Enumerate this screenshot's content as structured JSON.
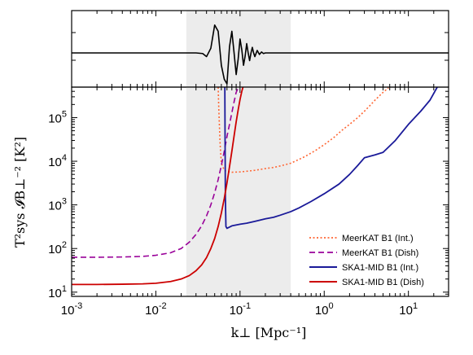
{
  "chart_data": [
    {
      "type": "line",
      "panel": "top",
      "description_axes": "none",
      "shaded_band": [
        0.023,
        0.4
      ],
      "series": [
        {
          "color": "#000000",
          "style": "solid",
          "x": [
            0.001,
            0.03,
            0.036,
            0.04,
            0.045,
            0.05,
            0.055,
            0.06,
            0.065,
            0.07,
            0.075,
            0.08,
            0.085,
            0.09,
            0.095,
            0.1,
            0.105,
            0.11,
            0.115,
            0.12,
            0.125,
            0.13,
            0.135,
            0.14,
            0.145,
            0.15,
            0.16,
            0.17,
            0.18,
            0.19,
            0.2,
            0.3,
            30
          ],
          "y": [
            0,
            0,
            -0.02,
            -0.12,
            0.15,
            0.9,
            0.7,
            -0.4,
            -0.85,
            -1.0,
            0.2,
            0.7,
            0.0,
            -0.7,
            -0.2,
            0.45,
            0.1,
            -0.4,
            -0.1,
            0.3,
            0.0,
            -0.25,
            0.0,
            0.18,
            0.0,
            -0.12,
            0.08,
            -0.05,
            0.03,
            -0.02,
            0.0,
            0.0,
            0.0
          ]
        }
      ]
    },
    {
      "type": "line",
      "panel": "bottom",
      "xscale": "log",
      "yscale": "log",
      "xlim": [
        0.001,
        30
      ],
      "ylim": [
        8,
        500000
      ],
      "xlabel": "k⊥ [Mpc⁻¹]",
      "ylabel": "T²sys 𝓘B⊥⁻² [K²]",
      "x_ticks": [
        {
          "base": "10",
          "exp": "-3"
        },
        {
          "base": "10",
          "exp": "-2"
        },
        {
          "base": "10",
          "exp": "-1"
        },
        {
          "base": "10",
          "exp": "0"
        },
        {
          "base": "10",
          "exp": "1"
        }
      ],
      "y_ticks": [
        {
          "base": "10",
          "exp": "1"
        },
        {
          "base": "10",
          "exp": "2"
        },
        {
          "base": "10",
          "exp": "3"
        },
        {
          "base": "10",
          "exp": "4"
        },
        {
          "base": "10",
          "exp": "5"
        }
      ],
      "shaded_band": [
        0.023,
        0.4
      ],
      "legend_position": "lower-right",
      "series": [
        {
          "name": "MeerKAT B1 (Int.)",
          "color": "#ff6633",
          "style": "dotted",
          "x": [
            0.055,
            0.056,
            0.058,
            0.06,
            0.065,
            0.07,
            0.08,
            0.1,
            0.12,
            0.15,
            0.2,
            0.25,
            0.3,
            0.4,
            0.5,
            0.6,
            0.8,
            1.0,
            1.3,
            1.6,
            2.0,
            2.5,
            3.0,
            3.5,
            4.0,
            5.0,
            5.8
          ],
          "y": [
            500000,
            150000,
            25000,
            9000,
            6200,
            5800,
            5600,
            5700,
            5900,
            6200,
            6800,
            7200,
            7800,
            9000,
            11000,
            13000,
            18000,
            24000,
            35000,
            50000,
            70000,
            100000,
            140000,
            190000,
            250000,
            380000,
            480000
          ]
        },
        {
          "name": "MeerKAT B1 (Dish)",
          "color": "#990099",
          "style": "dashed",
          "x": [
            0.001,
            0.002,
            0.004,
            0.007,
            0.01,
            0.015,
            0.02,
            0.025,
            0.03,
            0.035,
            0.04,
            0.045,
            0.05,
            0.055,
            0.06,
            0.065,
            0.07,
            0.075,
            0.08,
            0.085,
            0.09,
            0.1
          ],
          "y": [
            63,
            63,
            64,
            66,
            70,
            80,
            100,
            140,
            210,
            330,
            560,
            1000,
            1900,
            3800,
            8000,
            17000,
            37000,
            70000,
            130000,
            230000,
            380000,
            600000
          ]
        },
        {
          "name": "SKA1-MID B1 (Int.)",
          "color": "#1a1a99",
          "style": "solid",
          "x": [
            0.066,
            0.0665,
            0.067,
            0.068,
            0.07,
            0.08,
            0.1,
            0.12,
            0.15,
            0.2,
            0.25,
            0.3,
            0.4,
            0.5,
            0.7,
            1.0,
            1.5,
            2.0,
            2.5,
            3.0,
            4.0,
            5.0,
            7.0,
            10,
            14,
            18,
            22
          ],
          "y": [
            500000,
            20000,
            1500,
            320,
            290,
            330,
            360,
            380,
            420,
            480,
            520,
            580,
            700,
            850,
            1200,
            1800,
            3000,
            5000,
            8000,
            12000,
            14000,
            16000,
            30000,
            70000,
            140000,
            250000,
            500000
          ]
        },
        {
          "name": "SKA1-MID B1 (Dish)",
          "color": "#cc0000",
          "style": "solid",
          "x": [
            0.001,
            0.002,
            0.004,
            0.007,
            0.01,
            0.015,
            0.02,
            0.025,
            0.03,
            0.035,
            0.04,
            0.045,
            0.05,
            0.055,
            0.06,
            0.065,
            0.07,
            0.075,
            0.08,
            0.085,
            0.09,
            0.095,
            0.1,
            0.105,
            0.11
          ],
          "y": [
            15,
            15,
            15.2,
            15.5,
            16,
            17.5,
            20,
            24,
            31,
            42,
            62,
            100,
            170,
            320,
            650,
            1400,
            3200,
            7500,
            17000,
            38000,
            80000,
            150000,
            260000,
            400000,
            550000
          ]
        }
      ]
    }
  ]
}
